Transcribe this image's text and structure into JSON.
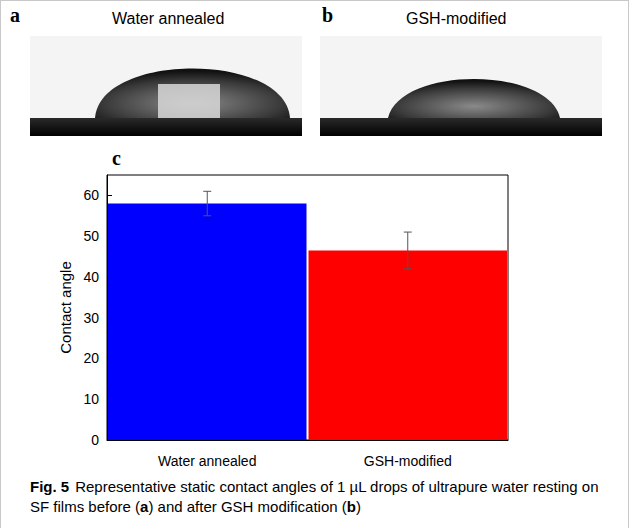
{
  "panels": [
    {
      "letter": "a",
      "title": "Water annealed"
    },
    {
      "letter": "b",
      "title": "GSH-modified"
    },
    {
      "letter": "c"
    }
  ],
  "chart_data": {
    "type": "bar",
    "categories": [
      "Water annealed",
      "GSH-modified"
    ],
    "values": [
      58,
      46.5
    ],
    "errors": [
      3,
      4.5
    ],
    "colors": [
      "#0000ff",
      "#ff0000"
    ],
    "ylabel": "Contact angle",
    "ylim": [
      0,
      65
    ],
    "yticks": [
      0,
      10,
      20,
      30,
      40,
      50,
      60
    ],
    "grid": false
  },
  "caption": {
    "label": "Fig. 5",
    "text": "Representative static contact angles of 1 µL drops of ultrapure water resting on SF films before (a) and after GSH modification (b)"
  }
}
